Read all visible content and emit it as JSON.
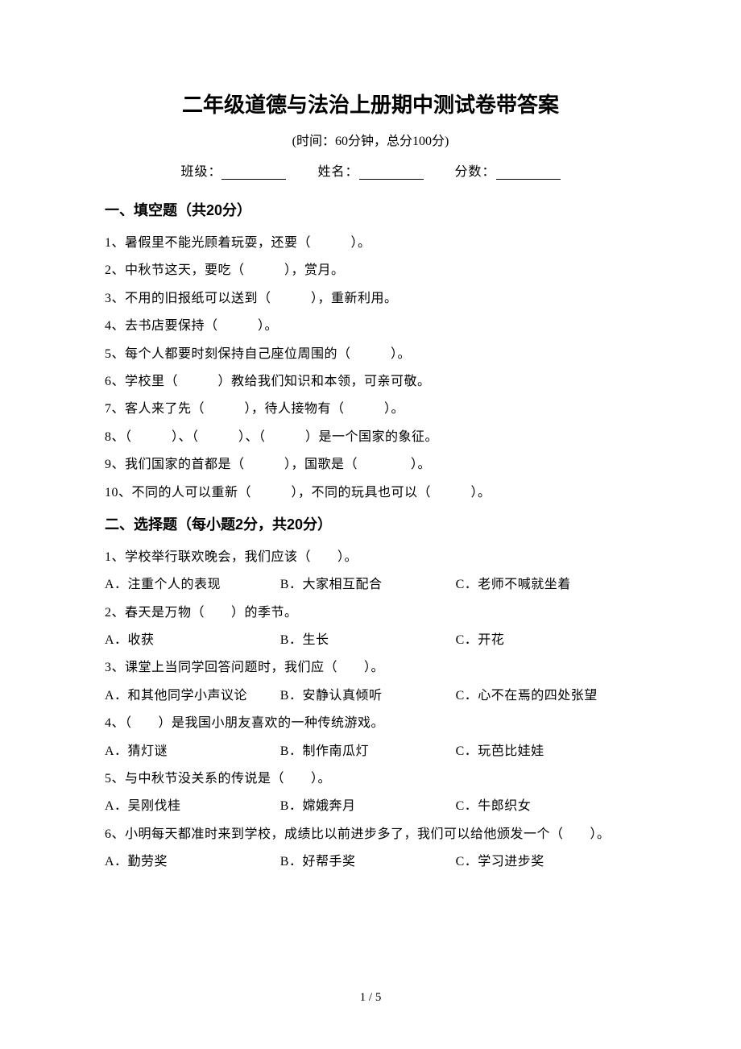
{
  "document": {
    "title": "二年级道德与法治上册期中测试卷带答案",
    "subtitle": "(时间：60分钟，总分100分)",
    "info_labels": {
      "class": "班级：",
      "name": "姓名：",
      "score": "分数："
    },
    "section1": {
      "header": "一、填空题（共20分）",
      "questions": [
        "1、暑假里不能光顾着玩耍，还要（　　　）。",
        "2、中秋节这天，要吃（　　　），赏月。",
        "3、不用的旧报纸可以送到（　　　），重新利用。",
        "4、去书店要保持（　　　）。",
        "5、每个人都要时刻保持自己座位周围的（　　　）。",
        "6、学校里（　　　）教给我们知识和本领，可亲可敬。",
        "7、客人来了先（　　　），待人接物有（　　　）。",
        "8、（　　　）、（　　　）、（　　　）是一个国家的象征。",
        "9、我们国家的首都是（　　　），国歌是（　　　　）。",
        "10、不同的人可以重新（　　　），不同的玩具也可以（　　　）。"
      ]
    },
    "section2": {
      "header": "二、选择题（每小题2分，共20分）",
      "items": [
        {
          "q": "1、学校举行联欢晚会，我们应该（　　）。",
          "opts": [
            "A．注重个人的表现",
            "B．大家相互配合",
            "C．老师不喊就坐着"
          ]
        },
        {
          "q": "2、春天是万物（　　）的季节。",
          "opts": [
            "A．收获",
            "B．生长",
            "C．开花"
          ]
        },
        {
          "q": "3、课堂上当同学回答问题时，我们应（　　）。",
          "opts": [
            "A．和其他同学小声议论",
            "B．安静认真倾听",
            "C．心不在焉的四处张望"
          ]
        },
        {
          "q": "4、（　　）是我国小朋友喜欢的一种传统游戏。",
          "opts": [
            "A．猜灯谜",
            "B．制作南瓜灯",
            "C．玩芭比娃娃"
          ]
        },
        {
          "q": "5、与中秋节没关系的传说是（　　）。",
          "opts": [
            "A．吴刚伐桂",
            "B．嫦娥奔月",
            "C．牛郎织女"
          ]
        },
        {
          "q": "6、小明每天都准时来到学校，成绩比以前进步多了，我们可以给他颁发一个（　　）。",
          "opts": [
            "A．勤劳奖",
            "B．好帮手奖",
            "C．学习进步奖"
          ]
        }
      ]
    },
    "footer": "1 / 5"
  },
  "colors": {
    "background": "#ffffff",
    "text": "#000000"
  },
  "typography": {
    "title_fontsize": 26,
    "body_fontsize": 16,
    "section_fontsize": 18,
    "line_height": 2.15
  }
}
